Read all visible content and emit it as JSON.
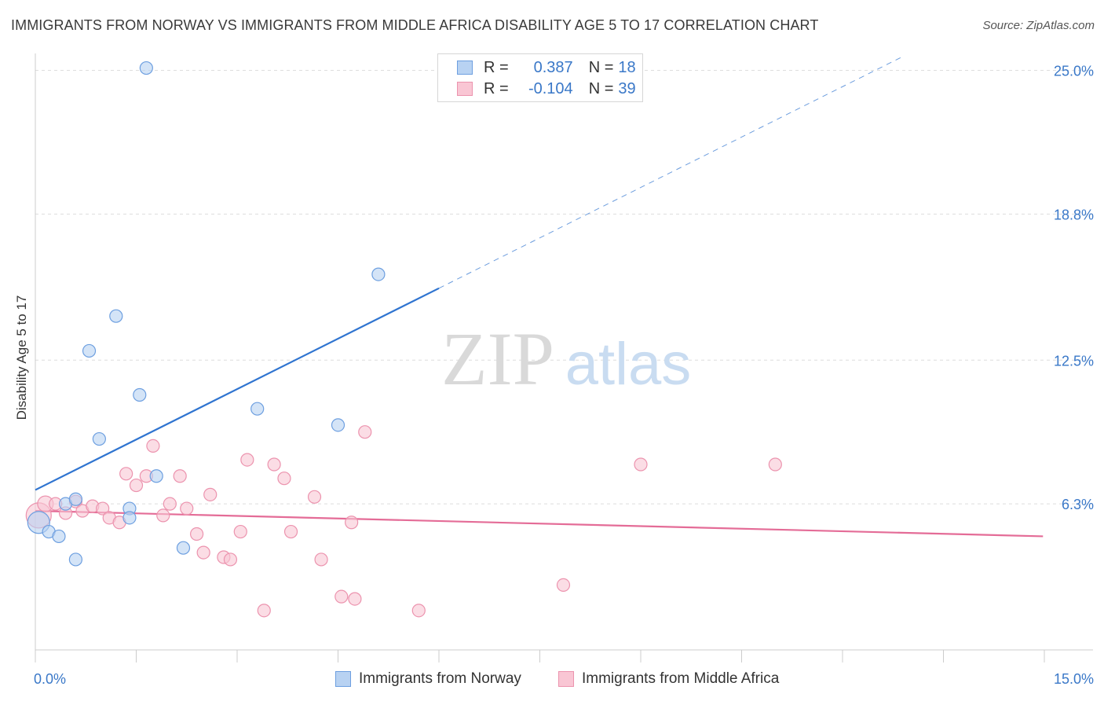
{
  "title": "IMMIGRANTS FROM NORWAY VS IMMIGRANTS FROM MIDDLE AFRICA DISABILITY AGE 5 TO 17 CORRELATION CHART",
  "source": "Source: ZipAtlas.com",
  "watermark": {
    "zip": "ZIP",
    "atlas": "atlas"
  },
  "colors": {
    "norway_fill": "#b8d2f2",
    "norway_stroke": "#6d9fe0",
    "norway_line": "#2f74d0",
    "africa_fill": "#f9c6d4",
    "africa_stroke": "#ec93ae",
    "africa_line": "#e46c97",
    "tick_label": "#3a78c8",
    "grid": "#dddddd"
  },
  "legend": {
    "rows": [
      {
        "r_label": "R =",
        "r_value": "0.387",
        "n_label": "N =",
        "n_value": "18"
      },
      {
        "r_label": "R =",
        "r_value": "-0.104",
        "n_label": "N =",
        "n_value": "39"
      }
    ]
  },
  "bottom_legend": [
    "Immigrants from Norway",
    "Immigrants from Middle Africa"
  ],
  "chart_data": {
    "type": "scatter",
    "ylabel": "Disability Age 5 to 17",
    "xlabel": "",
    "xlim": [
      0,
      15
    ],
    "ylim": [
      0,
      26.0
    ],
    "x_tick_labels": [
      {
        "value": 0,
        "label": "0.0%"
      },
      {
        "value": 15,
        "label": "15.0%"
      }
    ],
    "x_tick_marks": [
      0,
      1.5,
      3,
      4.5,
      6,
      7.5,
      9,
      10.5,
      12,
      13.5,
      15
    ],
    "y_ticks": [
      {
        "value": 6.3,
        "label": "6.3%"
      },
      {
        "value": 12.5,
        "label": "12.5%"
      },
      {
        "value": 18.8,
        "label": "18.8%"
      },
      {
        "value": 25.0,
        "label": "25.0%"
      }
    ],
    "grid": true,
    "series": [
      {
        "name": "Immigrants from Norway",
        "r": 0.387,
        "n": 18,
        "points": [
          [
            0.05,
            5.5,
            14
          ],
          [
            0.2,
            5.1,
            8
          ],
          [
            0.35,
            4.9,
            8
          ],
          [
            0.45,
            6.3,
            8
          ],
          [
            0.6,
            3.9,
            8
          ],
          [
            0.6,
            6.5,
            8
          ],
          [
            0.8,
            12.9,
            8
          ],
          [
            0.95,
            9.1,
            8
          ],
          [
            1.2,
            14.4,
            8
          ],
          [
            1.4,
            6.1,
            8
          ],
          [
            1.4,
            5.7,
            8
          ],
          [
            1.55,
            11.0,
            8
          ],
          [
            1.65,
            25.1,
            8
          ],
          [
            1.8,
            7.5,
            8
          ],
          [
            2.2,
            4.4,
            8
          ],
          [
            3.3,
            10.4,
            8
          ],
          [
            4.5,
            9.7,
            8
          ],
          [
            5.1,
            16.2,
            8
          ]
        ],
        "trend": {
          "x0": 0,
          "y0": 6.9,
          "x1": 6.0,
          "y1": 15.6,
          "dash_x1": 12.9,
          "dash_y1": 25.6
        }
      },
      {
        "name": "Immigrants from Middle Africa",
        "r": -0.104,
        "n": 39,
        "points": [
          [
            0.05,
            5.8,
            16
          ],
          [
            0.15,
            6.3,
            10
          ],
          [
            0.3,
            6.3,
            8
          ],
          [
            0.45,
            5.9,
            8
          ],
          [
            0.6,
            6.4,
            8
          ],
          [
            0.7,
            6.0,
            8
          ],
          [
            0.85,
            6.2,
            8
          ],
          [
            1.0,
            6.1,
            8
          ],
          [
            1.1,
            5.7,
            8
          ],
          [
            1.25,
            5.5,
            8
          ],
          [
            1.35,
            7.6,
            8
          ],
          [
            1.5,
            7.1,
            8
          ],
          [
            1.65,
            7.5,
            8
          ],
          [
            1.75,
            8.8,
            8
          ],
          [
            1.9,
            5.8,
            8
          ],
          [
            2.0,
            6.3,
            8
          ],
          [
            2.15,
            7.5,
            8
          ],
          [
            2.25,
            6.1,
            8
          ],
          [
            2.4,
            5.0,
            8
          ],
          [
            2.5,
            4.2,
            8
          ],
          [
            2.6,
            6.7,
            8
          ],
          [
            2.8,
            4.0,
            8
          ],
          [
            2.9,
            3.9,
            8
          ],
          [
            3.05,
            5.1,
            8
          ],
          [
            3.15,
            8.2,
            8
          ],
          [
            3.4,
            1.7,
            8
          ],
          [
            3.55,
            8.0,
            8
          ],
          [
            3.7,
            7.4,
            8
          ],
          [
            3.8,
            5.1,
            8
          ],
          [
            4.15,
            6.6,
            8
          ],
          [
            4.25,
            3.9,
            8
          ],
          [
            4.55,
            2.3,
            8
          ],
          [
            4.7,
            5.5,
            8
          ],
          [
            4.75,
            2.2,
            8
          ],
          [
            4.9,
            9.4,
            8
          ],
          [
            5.7,
            1.7,
            8
          ],
          [
            7.85,
            2.8,
            8
          ],
          [
            9.0,
            8.0,
            8
          ],
          [
            11.0,
            8.0,
            8
          ]
        ],
        "trend": {
          "x0": 0,
          "y0": 6.0,
          "x1": 14.98,
          "y1": 4.9
        }
      }
    ]
  }
}
